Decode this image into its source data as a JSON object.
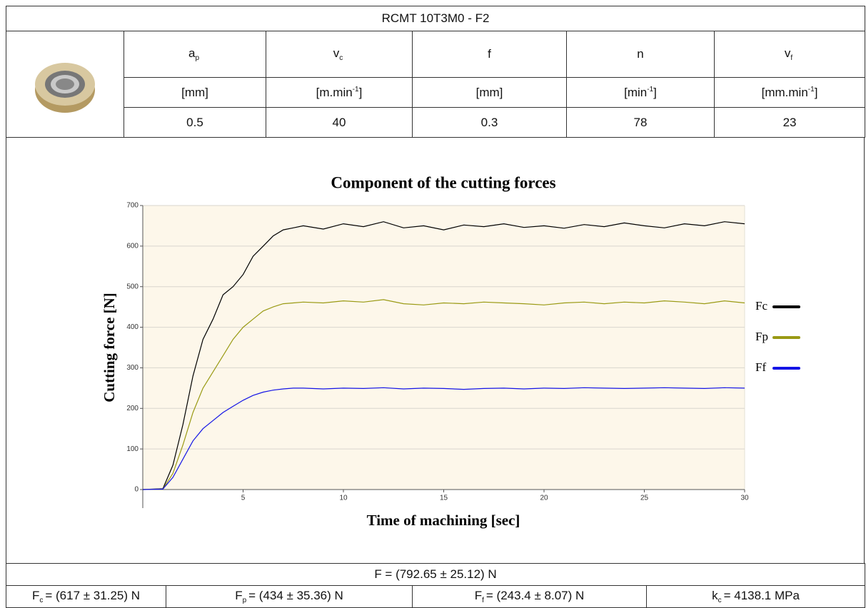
{
  "header": {
    "title": "RCMT 10T3M0 - F2"
  },
  "table": {
    "columns": [
      {
        "symbol": "a",
        "sub": "p",
        "unit": {
          "pre": "[mm]"
        },
        "value": 0.5
      },
      {
        "symbol": "v",
        "sub": "c",
        "unit": {
          "pre": "[m.min",
          "sup": "-1",
          "post": "]"
        },
        "value": 40
      },
      {
        "symbol": "f",
        "unit": {
          "pre": "[mm]"
        },
        "value": 0.3
      },
      {
        "symbol": "n",
        "unit": {
          "pre": "[min",
          "sup": "-1",
          "post": "]"
        },
        "value": 78
      },
      {
        "symbol": "v",
        "sub": "f",
        "unit": {
          "pre": "[mm.min",
          "sup": "-1",
          "post": "]"
        },
        "value": 23
      }
    ]
  },
  "chart_data": {
    "type": "line",
    "title": "Component of the cutting forces",
    "x_label": "Time of machining [sec]",
    "y_label": "Cutting force [N]",
    "x": [
      0,
      1,
      1.5,
      2,
      2.5,
      3,
      3.5,
      4,
      4.5,
      5,
      5.5,
      6,
      6.5,
      7,
      7.5,
      8,
      9,
      10,
      11,
      12,
      13,
      14,
      15,
      16,
      17,
      18,
      19,
      20,
      21,
      22,
      23,
      24,
      25,
      26,
      27,
      28,
      29,
      30
    ],
    "series": [
      {
        "name": "Fc",
        "color": "#000000",
        "values": [
          0,
          2,
          60,
          160,
          280,
          370,
          420,
          480,
          500,
          530,
          575,
          600,
          625,
          640,
          645,
          650,
          642,
          655,
          648,
          660,
          645,
          650,
          640,
          652,
          648,
          655,
          646,
          650,
          644,
          653,
          648,
          657,
          650,
          645,
          655,
          650,
          660,
          655
        ]
      },
      {
        "name": "Fp",
        "color": "#9a9a14",
        "values": [
          0,
          1,
          40,
          110,
          190,
          250,
          290,
          330,
          370,
          400,
          420,
          440,
          450,
          458,
          460,
          462,
          460,
          465,
          462,
          468,
          458,
          455,
          460,
          458,
          462,
          460,
          458,
          455,
          460,
          462,
          458,
          462,
          460,
          465,
          462,
          458,
          465,
          460
        ]
      },
      {
        "name": "Ff",
        "color": "#1414e6",
        "values": [
          0,
          1,
          30,
          75,
          120,
          150,
          170,
          190,
          205,
          220,
          232,
          240,
          245,
          248,
          250,
          250,
          248,
          250,
          249,
          251,
          248,
          250,
          249,
          247,
          249,
          250,
          248,
          250,
          249,
          251,
          250,
          249,
          250,
          251,
          250,
          249,
          251,
          250
        ]
      }
    ],
    "xlim": [
      0,
      30
    ],
    "xticks": [
      5,
      10,
      15,
      20,
      25,
      30
    ],
    "ylim": [
      0,
      700
    ],
    "yticks": [
      0,
      100,
      200,
      300,
      400,
      500,
      600,
      700
    ],
    "grid": true,
    "legend": "right"
  },
  "summary": {
    "force": "F = (792.65 ± 25.12) N",
    "components": [
      {
        "symbol": "F",
        "sub": "c",
        "text": "= (617 ± 31.25) N"
      },
      {
        "symbol": "F",
        "sub": "p",
        "text": "= (434 ± 35.36) N"
      },
      {
        "symbol": "F",
        "sub": "f",
        "text": "= (243.4 ± 8.07) N"
      },
      {
        "symbol": "k",
        "sub": "c",
        "text": "= 4138.1 MPa"
      }
    ]
  }
}
